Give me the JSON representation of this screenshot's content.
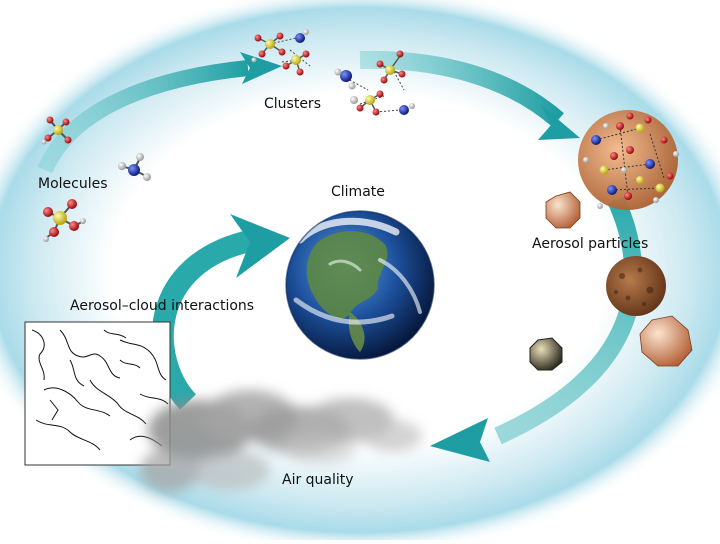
{
  "labels": {
    "molecules": "Molecules",
    "clusters": "Clusters",
    "climate": "Climate",
    "aerosol_particles": "Aerosol particles",
    "aerosol_cloud_interactions": "Aerosol–cloud interactions",
    "air_quality": "Air quality"
  },
  "colors": {
    "arrow": "#2fa6a8",
    "arrow_dark": "#1b7f83",
    "halo": "#b9e2ee",
    "sulfur": "#f2e23a",
    "oxygen": "#d42020",
    "nitrogen": "#1d36b8",
    "hydrogen": "#e6e6e6",
    "ocean": "#1c4f9a",
    "particle": "#c7824e",
    "cloud": "#9a9a9a"
  },
  "icons": [
    "earth-globe-icon",
    "cloud-icon",
    "satellite-map-icon",
    "molecule-icon",
    "cluster-icon",
    "aerosol-particle-icon"
  ]
}
